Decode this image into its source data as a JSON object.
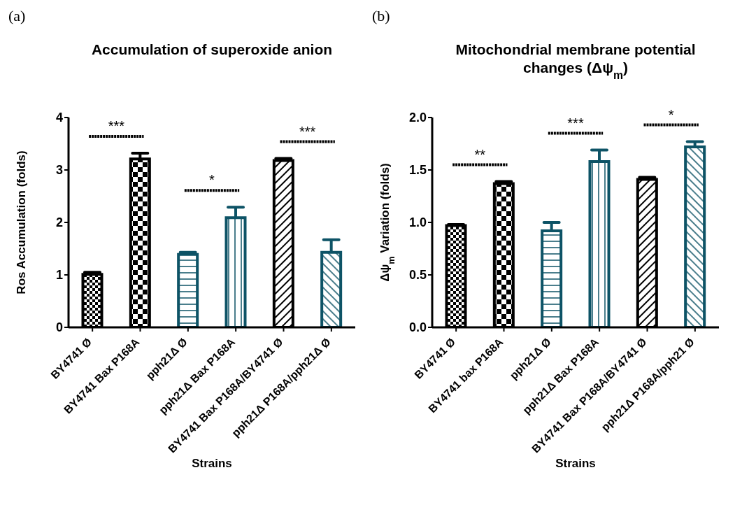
{
  "chart_data": [
    {
      "type": "bar",
      "title": "Accumulation of superoxide anion",
      "xlabel": "Strains",
      "ylabel": "Ros Accumulation (folds)",
      "categories": [
        "BY4741 Ø",
        "BY4741 Bax P168A",
        "pph21Δ Ø",
        "pph21Δ Bax P168A",
        "BY4741 Bax P168A/BY4741 Ø",
        "pph21Δ P168A/pph21Δ Ø"
      ],
      "values": [
        1.01,
        3.21,
        1.39,
        2.09,
        3.18,
        1.43
      ],
      "colors": [
        "#000000",
        "#000000",
        "#0d5366",
        "#0d5366",
        "#000000",
        "#0d5366"
      ],
      "errors": [
        [
          1.01,
          1.05
        ],
        [
          3.21,
          3.32
        ],
        [
          1.39,
          1.43
        ],
        [
          2.09,
          2.29
        ],
        [
          3.18,
          3.22
        ],
        [
          1.43,
          1.67
        ]
      ],
      "ylim": [
        0,
        4
      ],
      "yticks": [
        0,
        1,
        2,
        3,
        4
      ],
      "grid": false,
      "legend": false,
      "annotations": [
        "(a)",
        "***",
        "*",
        "***"
      ]
    },
    {
      "type": "bar",
      "title": "Mitochondrial membrane potential changes (Δψ$_{m}$)",
      "xlabel": "Strains",
      "ylabel": "Δψ$_{m}$ Variation (folds)",
      "categories": [
        "BY4741 Ø",
        "BY4741 bax P168A",
        "pph21Δ Ø",
        "pph21Δ Bax P168A",
        "BY4741 Bax P168A/BY4741 Ø",
        "pph21Δ P168A/pph21 Ø"
      ],
      "values": [
        0.97,
        1.37,
        0.92,
        1.58,
        1.41,
        1.72
      ],
      "colors": [
        "#000000",
        "#000000",
        "#0d5366",
        "#0d5366",
        "#000000",
        "#0d5366"
      ],
      "errors": [
        [
          0.97,
          0.98
        ],
        [
          1.37,
          1.39
        ],
        [
          0.92,
          1.0
        ],
        [
          1.58,
          1.69
        ],
        [
          1.41,
          1.43
        ],
        [
          1.72,
          1.77
        ]
      ],
      "ylim": [
        0,
        2
      ],
      "yticks": [
        {
          "value": 0,
          "label": "0.0"
        },
        {
          "value": 0.5,
          "label": "0.5"
        },
        {
          "value": 1,
          "label": "1.0"
        },
        {
          "value": 1.5,
          "label": "1.5"
        },
        {
          "value": 2,
          "label": "2.0"
        }
      ],
      "grid": false,
      "legend": false,
      "annotations": [
        "(b)",
        "**",
        "***",
        "*"
      ]
    }
  ]
}
